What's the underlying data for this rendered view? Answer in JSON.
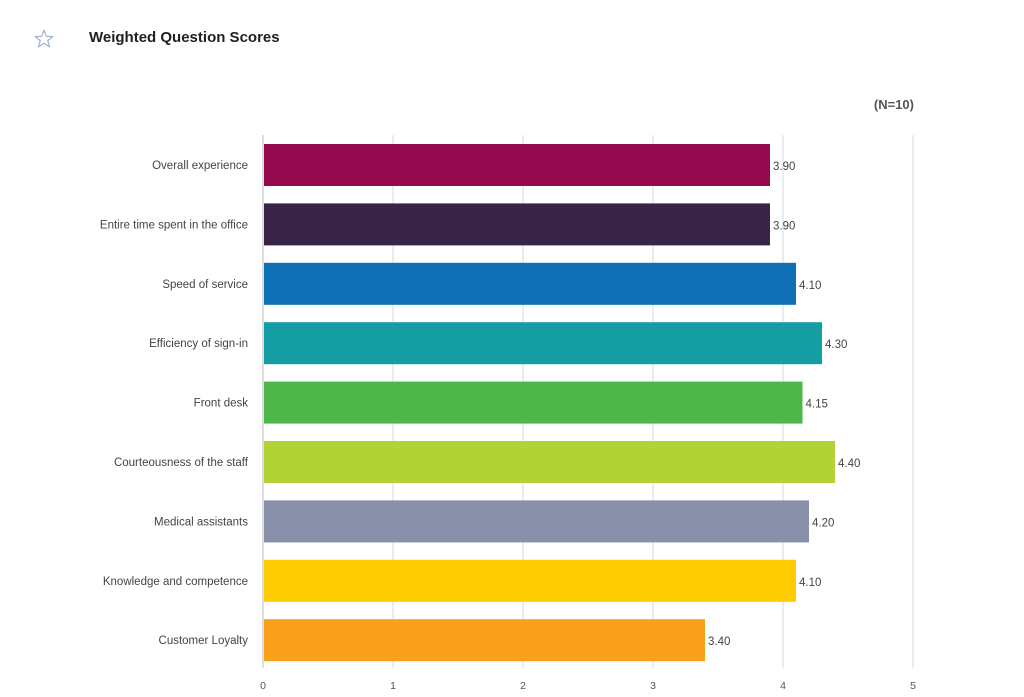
{
  "header": {
    "title": "Weighted Question Scores",
    "icon": "star-outline-icon"
  },
  "chart_meta": {
    "n_label": "(N=10)"
  },
  "chart_data": {
    "type": "bar",
    "orientation": "horizontal",
    "categories": [
      "Overall experience",
      "Entire time spent in the office",
      "Speed of service",
      "Efficiency of sign-in",
      "Front desk",
      "Courteousness of the staff",
      "Medical assistants",
      "Knowledge and competence",
      "Customer Loyalty"
    ],
    "values": [
      3.9,
      3.9,
      4.1,
      4.3,
      4.15,
      4.4,
      4.2,
      4.1,
      3.4
    ],
    "value_labels": [
      "3.90",
      "3.90",
      "4.10",
      "4.30",
      "4.15",
      "4.40",
      "4.20",
      "4.10",
      "3.40"
    ],
    "colors": [
      "#950a4f",
      "#372447",
      "#0f70b5",
      "#149ea3",
      "#4db849",
      "#b2d235",
      "#8790a8",
      "#fecb00",
      "#f9a11b"
    ],
    "xlim": [
      0,
      5
    ],
    "xticks": [
      "0",
      "1",
      "2",
      "3",
      "4",
      "5"
    ],
    "grid": true
  }
}
